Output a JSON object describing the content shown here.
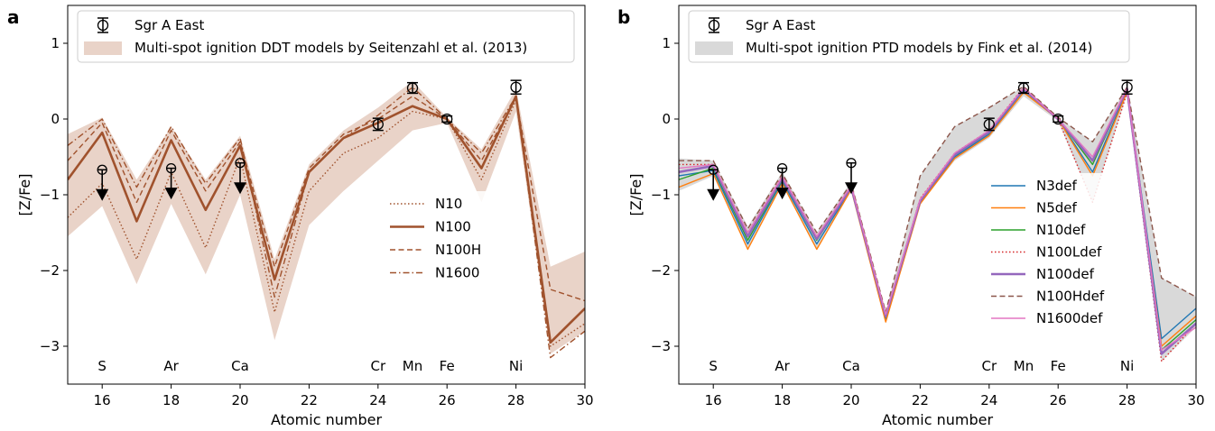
{
  "chart_data": [
    {
      "panel_label": "a",
      "type": "line",
      "xlabel": "Atomic number",
      "ylabel": "[Z/Fe]",
      "xlim": [
        15,
        30
      ],
      "ylim": [
        -3.5,
        1.5
      ],
      "xticks": [
        "16",
        "18",
        "20",
        "22",
        "24",
        "26",
        "28",
        "30"
      ],
      "yticks": [
        "−3",
        "−2",
        "−1",
        "0",
        "1"
      ],
      "element_labels": [
        {
          "label": "S",
          "z": 16
        },
        {
          "label": "Ar",
          "z": 18
        },
        {
          "label": "Ca",
          "z": 20
        },
        {
          "label": "Cr",
          "z": 24
        },
        {
          "label": "Mn",
          "z": 25
        },
        {
          "label": "Fe",
          "z": 26
        },
        {
          "label": "Ni",
          "z": 28
        }
      ],
      "legend_top": [
        {
          "label": "Sgr A East",
          "kind": "errorbar"
        },
        {
          "label": "Multi-spot ignition DDT models by Seitenzahl et al. (2013)",
          "kind": "band",
          "color": "#e9d3c8"
        }
      ],
      "band": {
        "color": "#e9d3c8",
        "x": [
          15,
          16,
          17,
          18,
          19,
          20,
          21,
          22,
          23,
          24,
          25,
          26,
          27,
          28,
          29,
          30
        ],
        "upper": [
          -0.2,
          0.02,
          -0.8,
          -0.1,
          -0.8,
          -0.22,
          -1.85,
          -0.6,
          -0.15,
          0.15,
          0.5,
          0.02,
          -0.4,
          0.4,
          -1.95,
          -1.75
        ],
        "lower": [
          -1.55,
          -1.15,
          -2.18,
          -1.12,
          -2.05,
          -1.0,
          -2.92,
          -1.4,
          -0.95,
          -0.55,
          -0.15,
          -0.05,
          -1.1,
          0.1,
          -3.1,
          -2.8
        ]
      },
      "series": [
        {
          "name": "N10",
          "color": "#a0522d",
          "style": "dotted",
          "width": 1.4,
          "values": [
            -1.3,
            -0.85,
            -1.85,
            -0.7,
            -1.7,
            -0.5,
            -2.55,
            -0.95,
            -0.45,
            -0.25,
            0.1,
            0.0,
            -0.8,
            0.25,
            -3.0,
            -2.7
          ]
        },
        {
          "name": "N100",
          "color": "#a0522d",
          "style": "solid",
          "width": 2.6,
          "values": [
            -0.8,
            -0.18,
            -1.35,
            -0.28,
            -1.2,
            -0.35,
            -2.12,
            -0.7,
            -0.25,
            -0.05,
            0.17,
            0.0,
            -0.65,
            0.3,
            -2.95,
            -2.5
          ]
        },
        {
          "name": "N100H",
          "color": "#a0522d",
          "style": "dashed",
          "width": 1.4,
          "values": [
            -0.55,
            -0.05,
            -1.1,
            -0.15,
            -0.95,
            -0.3,
            -1.95,
            -0.65,
            -0.2,
            0.0,
            0.3,
            0.0,
            -0.55,
            0.28,
            -2.25,
            -2.4
          ]
        },
        {
          "name": "N1600",
          "color": "#a0522d",
          "style": "dashdot",
          "width": 1.4,
          "values": [
            -0.35,
            0.0,
            -0.9,
            -0.1,
            -0.85,
            -0.25,
            -2.35,
            -0.7,
            -0.25,
            0.05,
            0.42,
            0.0,
            -0.45,
            0.3,
            -3.15,
            -2.8
          ]
        }
      ],
      "observations": [
        {
          "z": 16,
          "value": -0.67,
          "upper_limit": true
        },
        {
          "z": 18,
          "value": -0.65,
          "upper_limit": true
        },
        {
          "z": 20,
          "value": -0.58,
          "upper_limit": true
        },
        {
          "z": 24,
          "value": -0.07,
          "err": 0.08
        },
        {
          "z": 25,
          "value": 0.41,
          "err": 0.07
        },
        {
          "z": 26,
          "value": 0.0,
          "err": 0.04
        },
        {
          "z": 28,
          "value": 0.42,
          "err": 0.09
        }
      ]
    },
    {
      "panel_label": "b",
      "type": "line",
      "xlabel": "Atomic number",
      "ylabel": "[Z/Fe]",
      "xlim": [
        15,
        30
      ],
      "ylim": [
        -3.5,
        1.5
      ],
      "xticks": [
        "16",
        "18",
        "20",
        "22",
        "24",
        "26",
        "28",
        "30"
      ],
      "yticks": [
        "−3",
        "−2",
        "−1",
        "0",
        "1"
      ],
      "element_labels": [
        {
          "label": "S",
          "z": 16
        },
        {
          "label": "Ar",
          "z": 18
        },
        {
          "label": "Ca",
          "z": 20
        },
        {
          "label": "Cr",
          "z": 24
        },
        {
          "label": "Mn",
          "z": 25
        },
        {
          "label": "Fe",
          "z": 26
        },
        {
          "label": "Ni",
          "z": 28
        }
      ],
      "legend_top": [
        {
          "label": "Sgr A East",
          "kind": "errorbar"
        },
        {
          "label": "Multi-spot ignition PTD models by Fink et al. (2014)",
          "kind": "band",
          "color": "#d9d9d9"
        }
      ],
      "band": {
        "color": "#d9d9d9",
        "x": [
          15,
          16,
          17,
          18,
          19,
          20,
          21,
          22,
          23,
          24,
          25,
          26,
          27,
          28,
          29,
          30
        ],
        "upper": [
          -0.52,
          -0.55,
          -1.42,
          -0.7,
          -1.5,
          -0.82,
          -2.55,
          -0.75,
          -0.1,
          0.15,
          0.43,
          0.02,
          -0.3,
          0.42,
          -2.1,
          -2.35
        ],
        "lower": [
          -0.95,
          -0.75,
          -1.72,
          -0.87,
          -1.72,
          -0.95,
          -2.7,
          -1.12,
          -0.55,
          -0.25,
          0.3,
          -0.03,
          -1.1,
          0.33,
          -3.2,
          -2.75
        ]
      },
      "series": [
        {
          "name": "N3def",
          "color": "#1f77b4",
          "style": "solid",
          "width": 1.4,
          "values": [
            -0.75,
            -0.68,
            -1.65,
            -0.82,
            -1.65,
            -0.92,
            -2.65,
            -1.1,
            -0.5,
            -0.2,
            0.38,
            0.0,
            -0.7,
            0.38,
            -2.9,
            -2.5
          ]
        },
        {
          "name": "N5def",
          "color": "#ff7f0e",
          "style": "solid",
          "width": 1.4,
          "values": [
            -0.9,
            -0.72,
            -1.72,
            -0.85,
            -1.72,
            -0.93,
            -2.68,
            -1.12,
            -0.52,
            -0.22,
            0.35,
            0.0,
            -0.75,
            0.36,
            -3.0,
            -2.6
          ]
        },
        {
          "name": "N10def",
          "color": "#2ca02c",
          "style": "solid",
          "width": 1.4,
          "values": [
            -0.8,
            -0.65,
            -1.6,
            -0.8,
            -1.6,
            -0.9,
            -2.6,
            -1.08,
            -0.48,
            -0.18,
            0.4,
            0.0,
            -0.6,
            0.4,
            -3.05,
            -2.65
          ]
        },
        {
          "name": "N100Ldef",
          "color": "#d62728",
          "style": "dotted",
          "width": 1.4,
          "values": [
            -0.6,
            -0.6,
            -1.5,
            -0.75,
            -1.55,
            -0.88,
            -2.6,
            -1.05,
            -0.45,
            -0.15,
            0.42,
            0.0,
            -1.1,
            0.35,
            -3.2,
            -2.7
          ]
        },
        {
          "name": "N100def",
          "color": "#9467bd",
          "style": "solid",
          "width": 2.6,
          "values": [
            -0.7,
            -0.62,
            -1.55,
            -0.78,
            -1.58,
            -0.9,
            -2.6,
            -1.08,
            -0.47,
            -0.17,
            0.4,
            0.0,
            -0.55,
            0.4,
            -3.1,
            -2.7
          ]
        },
        {
          "name": "N100Hdef",
          "color": "#8c564b",
          "style": "dashed",
          "width": 1.4,
          "values": [
            -0.55,
            -0.55,
            -1.45,
            -0.72,
            -1.5,
            -0.85,
            -2.55,
            -0.75,
            -0.1,
            0.15,
            0.43,
            0.02,
            -0.3,
            0.42,
            -2.1,
            -2.35
          ]
        },
        {
          "name": "N1600def",
          "color": "#e377c2",
          "style": "solid",
          "width": 1.4,
          "values": [
            -0.65,
            -0.6,
            -1.5,
            -0.76,
            -1.55,
            -0.88,
            -2.58,
            -1.06,
            -0.45,
            -0.15,
            0.41,
            0.0,
            -0.5,
            0.41,
            -3.05,
            -2.75
          ]
        }
      ],
      "observations": [
        {
          "z": 16,
          "value": -0.67,
          "upper_limit": true
        },
        {
          "z": 18,
          "value": -0.65,
          "upper_limit": true
        },
        {
          "z": 20,
          "value": -0.58,
          "upper_limit": true
        },
        {
          "z": 24,
          "value": -0.07,
          "err": 0.08
        },
        {
          "z": 25,
          "value": 0.41,
          "err": 0.07
        },
        {
          "z": 26,
          "value": 0.0,
          "err": 0.04
        },
        {
          "z": 28,
          "value": 0.42,
          "err": 0.09
        }
      ]
    }
  ]
}
